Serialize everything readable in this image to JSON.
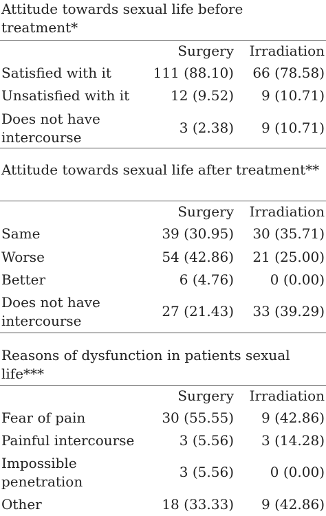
{
  "columns": {
    "surgery": "Surgery",
    "irradiation": "Irradiation"
  },
  "sections": [
    {
      "title": "Attitude towards sexual life before treatment*",
      "rows": [
        {
          "label": "Satisfied with it",
          "surgery": "111 (88.10)",
          "irradiation": "66 (78.58)"
        },
        {
          "label": "Unsatisfied with it",
          "surgery": "12 (9.52)",
          "irradiation": "9 (10.71)"
        },
        {
          "label": "Does not have intercourse",
          "surgery": "3 (2.38)",
          "irradiation": "9 (10.71)"
        }
      ]
    },
    {
      "title": "Attitude towards sexual life after treatment**",
      "rows": [
        {
          "label": "Same",
          "surgery": "39 (30.95)",
          "irradiation": "30 (35.71)"
        },
        {
          "label": "Worse",
          "surgery": "54 (42.86)",
          "irradiation": "21 (25.00)"
        },
        {
          "label": "Better",
          "surgery": "6 (4.76)",
          "irradiation": "0 (0.00)"
        },
        {
          "label": "Does not have intercourse",
          "surgery": "27 (21.43)",
          "irradiation": "33 (39.29)"
        }
      ]
    },
    {
      "title": "Reasons of dysfunction in patients sexual life***",
      "rows": [
        {
          "label": "Fear of pain",
          "surgery": "30 (55.55)",
          "irradiation": "9 (42.86)"
        },
        {
          "label": "Painful intercourse",
          "surgery": "3 (5.56)",
          "irradiation": "3 (14.28)"
        },
        {
          "label": "Impossible penetration",
          "surgery": "3 (5.56)",
          "irradiation": "0 (0.00)"
        },
        {
          "label": "Other",
          "surgery": "18 (33.33)",
          "irradiation": "9 (42.86)"
        }
      ]
    }
  ]
}
